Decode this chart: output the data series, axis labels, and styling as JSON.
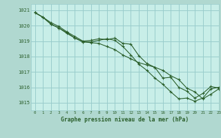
{
  "title": "Graphe pression niveau de la mer (hPa)",
  "fig_bg_color": "#b0d8d0",
  "plot_bg_color": "#c8eee8",
  "grid_color": "#99cccc",
  "line_color": "#2a5e2a",
  "xlim": [
    -0.5,
    23
  ],
  "ylim": [
    1014.5,
    1021.4
  ],
  "yticks": [
    1015,
    1016,
    1017,
    1018,
    1019,
    1020,
    1021
  ],
  "xticks": [
    0,
    1,
    2,
    3,
    4,
    5,
    6,
    7,
    8,
    9,
    10,
    11,
    12,
    13,
    14,
    15,
    16,
    17,
    18,
    19,
    20,
    21,
    22,
    23
  ],
  "s1_x": [
    0,
    1,
    2,
    3,
    4,
    5,
    6,
    7,
    8,
    9,
    10,
    11,
    12,
    13,
    14,
    15,
    16,
    17,
    18,
    19,
    20,
    21,
    22,
    23
  ],
  "s1_y": [
    1020.85,
    1020.55,
    1020.2,
    1019.95,
    1019.6,
    1019.3,
    1019.0,
    1019.05,
    1019.15,
    1019.1,
    1019.2,
    1018.85,
    1018.8,
    1018.05,
    1017.55,
    1017.3,
    1016.6,
    1016.65,
    1016.0,
    1015.75,
    1015.3,
    1015.6,
    1016.05,
    1015.95
  ],
  "s2_x": [
    0,
    1,
    2,
    3,
    4,
    5,
    6,
    7,
    8,
    9,
    10,
    11,
    12,
    13,
    14,
    15,
    16,
    17,
    18,
    19,
    20,
    21,
    22,
    23
  ],
  "s2_y": [
    1020.85,
    1020.55,
    1020.1,
    1019.85,
    1019.5,
    1019.2,
    1018.95,
    1018.9,
    1018.85,
    1018.65,
    1018.45,
    1018.1,
    1017.85,
    1017.6,
    1017.45,
    1017.3,
    1017.1,
    1016.75,
    1016.5,
    1015.95,
    1015.7,
    1015.25,
    1015.55,
    1015.9
  ],
  "s3_x": [
    0,
    1,
    2,
    3,
    4,
    5,
    6,
    7,
    8,
    9,
    10,
    11,
    12,
    13,
    14,
    15,
    16,
    17,
    18,
    19,
    20,
    21,
    22,
    23
  ],
  "s3_y": [
    1020.85,
    1020.55,
    1020.1,
    1019.85,
    1019.55,
    1019.2,
    1018.95,
    1018.95,
    1019.05,
    1019.15,
    1019.05,
    1018.65,
    1018.1,
    1017.5,
    1017.1,
    1016.6,
    1016.2,
    1015.7,
    1015.25,
    1015.3,
    1015.1,
    1015.3,
    1015.9,
    1016.0
  ]
}
